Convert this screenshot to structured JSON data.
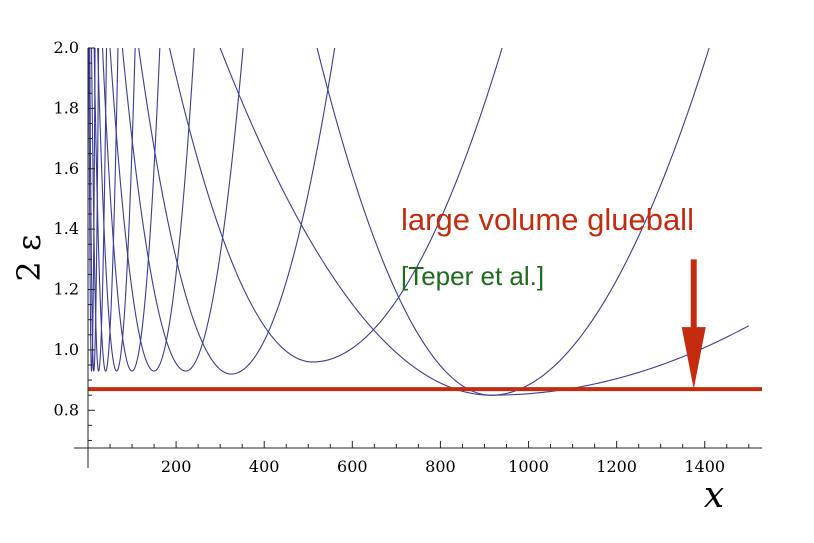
{
  "chart_data": {
    "type": "line",
    "title": "",
    "xlabel": "x",
    "ylabel": "2 ε",
    "xlim": [
      0,
      1530
    ],
    "ylim": [
      0.675,
      2.0
    ],
    "x_ticks": [
      200,
      400,
      600,
      800,
      1000,
      1200,
      1400
    ],
    "y_ticks": [
      0.8,
      1.0,
      1.2,
      1.4,
      1.6,
      1.8,
      2.0
    ],
    "grid": false,
    "series": [
      {
        "min_x": 8,
        "min_y": 0.93,
        "start_x": 2,
        "end_x": 16,
        "end_y": 2.0
      },
      {
        "min_x": 13,
        "min_y": 0.93,
        "start_x": 4,
        "end_x": 24,
        "end_y": 2.0
      },
      {
        "min_x": 24,
        "min_y": 0.93,
        "start_x": 8,
        "end_x": 42,
        "end_y": 2.0
      },
      {
        "min_x": 40,
        "min_y": 0.93,
        "start_x": 14,
        "end_x": 68,
        "end_y": 2.0
      },
      {
        "min_x": 65,
        "min_y": 0.93,
        "start_x": 22,
        "end_x": 107,
        "end_y": 2.0
      },
      {
        "min_x": 100,
        "min_y": 0.93,
        "start_x": 33,
        "end_x": 163,
        "end_y": 2.0
      },
      {
        "min_x": 150,
        "min_y": 0.93,
        "start_x": 50,
        "end_x": 241,
        "end_y": 2.0
      },
      {
        "min_x": 222,
        "min_y": 0.93,
        "start_x": 78,
        "end_x": 352,
        "end_y": 2.0
      },
      {
        "min_x": 325,
        "min_y": 0.92,
        "start_x": 115,
        "end_x": 560,
        "end_y": 2.0
      },
      {
        "min_x": 510,
        "min_y": 0.96,
        "start_x": 185,
        "end_x": 940,
        "end_y": 2.0
      },
      {
        "min_x": 915,
        "min_y": 0.85,
        "start_x": 300,
        "end_x": 1410,
        "end_y": 2.0
      },
      {
        "min_x": 915,
        "min_y": 0.85,
        "start_x": 520,
        "end_x": 1500,
        "end_y": 1.08
      }
    ],
    "reference_line": {
      "y": 0.87,
      "x_start": 0,
      "x_end": 1530,
      "color": "#c42b0f"
    },
    "arrow": {
      "x": 1375,
      "y_top": 1.3,
      "y_tip": 0.87,
      "color": "#c42b0f"
    },
    "annotations": [
      {
        "text": "large volume glueball",
        "color": "#c42b0f"
      },
      {
        "text": "[Teper et al.]",
        "color": "#1d6b1d"
      }
    ],
    "curve_color": "#3c3c96"
  }
}
